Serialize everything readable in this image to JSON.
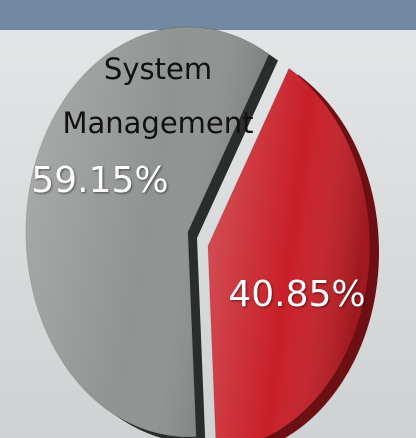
{
  "chart_data": {
    "type": "pie",
    "categories": [
      "System Management",
      null
    ],
    "values": [
      59.15,
      40.85
    ],
    "value_labels": [
      "59.15%",
      "40.85%"
    ],
    "colors": [
      "#8f9391",
      "#c81f28"
    ]
  }
}
